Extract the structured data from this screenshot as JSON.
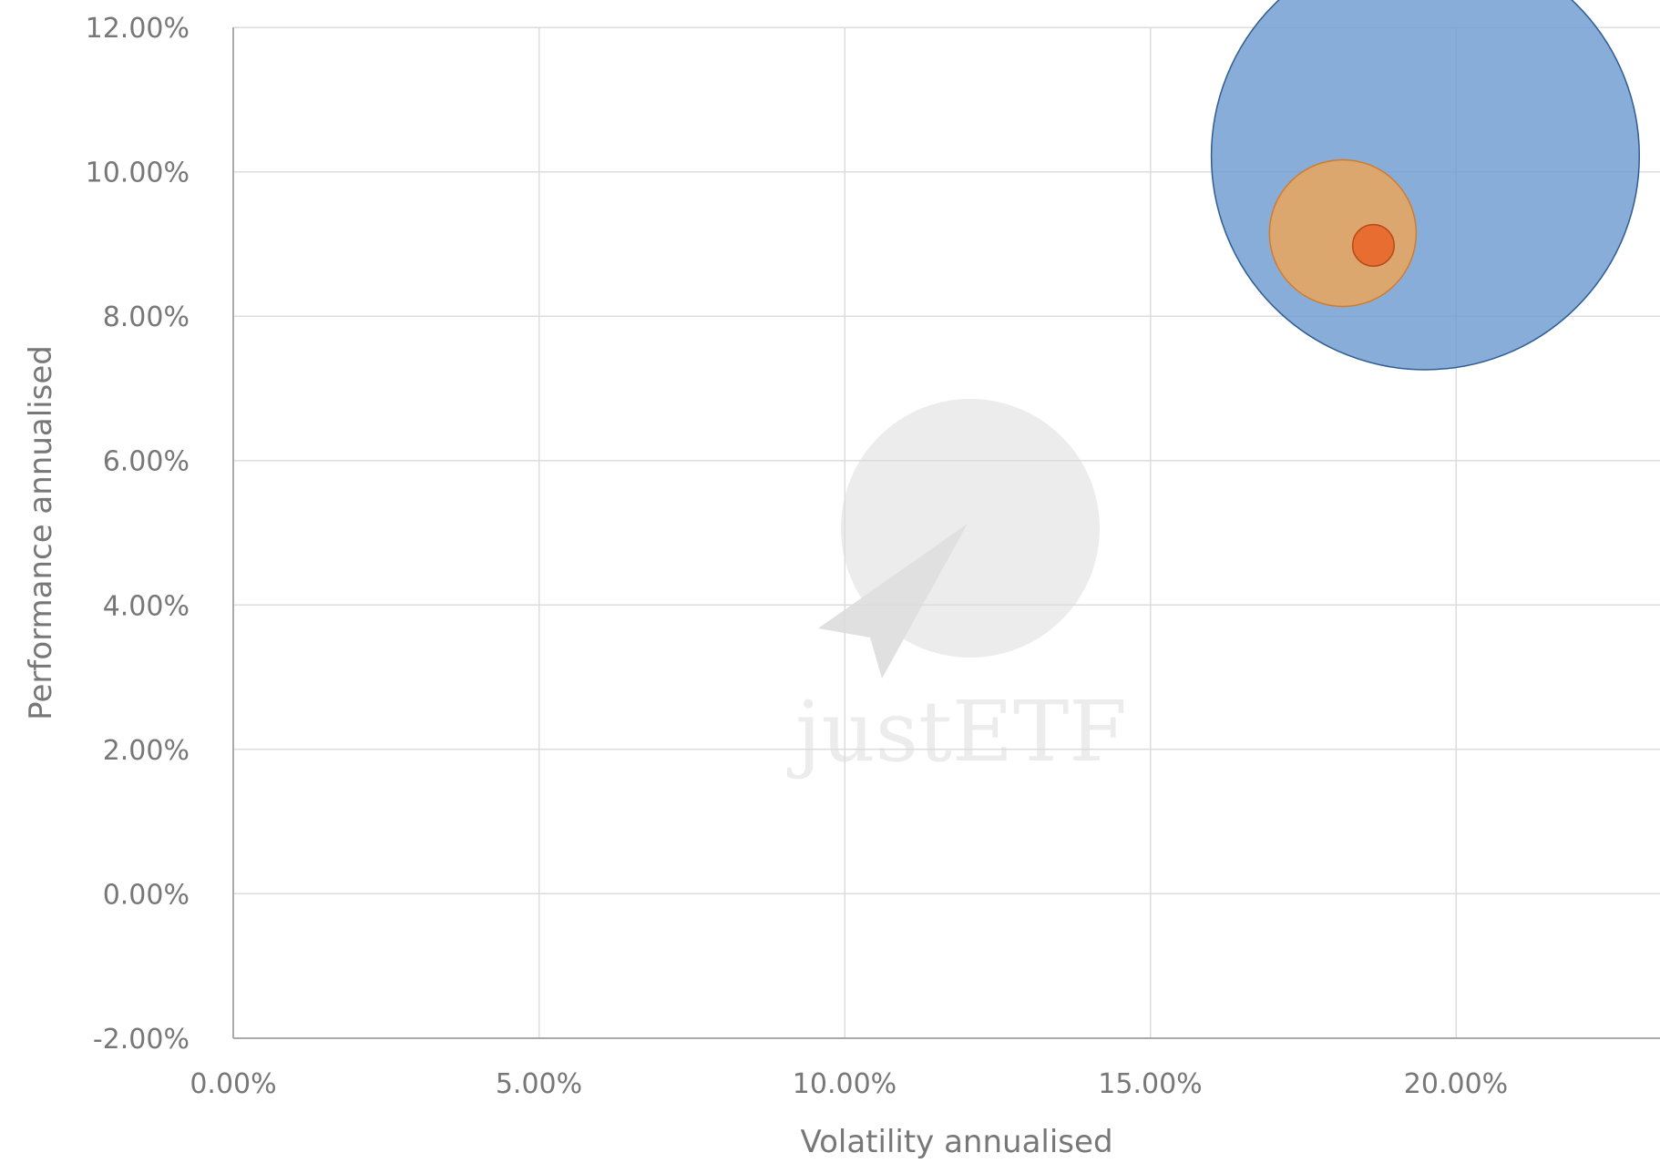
{
  "chart_data": {
    "type": "scatter",
    "variant": "bubble",
    "xlabel": "Volatility annualised",
    "ylabel": "Performance annualised",
    "xlim": [
      0,
      22.8
    ],
    "ylim": [
      -2,
      12
    ],
    "x_ticks": [
      0,
      5,
      10,
      15,
      20
    ],
    "y_ticks": [
      -2,
      0,
      2,
      4,
      6,
      8,
      10,
      12
    ],
    "x_tick_labels": [
      "0.00%",
      "5.00%",
      "10.00%",
      "15.00%",
      "20.00%"
    ],
    "y_tick_labels": [
      "-2.00%",
      "0.00%",
      "2.00%",
      "4.00%",
      "6.00%",
      "8.00%",
      "10.00%",
      "12.00%"
    ],
    "grid": true,
    "legend": "none",
    "watermark": "justETF",
    "points": [
      {
        "x": 19.5,
        "y": 10.22,
        "size": 3.5,
        "color": "#6f9bd1",
        "stroke": "#2f5d93",
        "opacity": 0.82
      },
      {
        "x": 18.15,
        "y": 9.15,
        "size": 1.2,
        "color": "#f4a54f",
        "stroke": "#d07b2b",
        "opacity": 0.78
      },
      {
        "x": 18.65,
        "y": 8.98,
        "size": 0.34,
        "color": "#e8672a",
        "stroke": "#b84a1a",
        "opacity": 0.9
      }
    ]
  }
}
